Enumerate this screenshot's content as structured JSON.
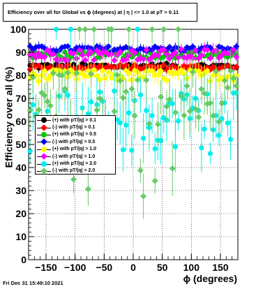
{
  "title": "Efficiency over all for Global vs ϕ (degrees) at |  η | <= 1.0 at pT > 0.11",
  "footer": "Fri Dec 31 15:49:10 2021",
  "chart_data": {
    "type": "scatter",
    "xlabel": "ϕ (degrees)",
    "ylabel": "Efficiency over all (%)",
    "xlim": [
      -180,
      180
    ],
    "ylim": [
      0,
      100
    ],
    "xticks": [
      -150,
      -100,
      -50,
      0,
      50,
      100,
      150
    ],
    "yticks": [
      0,
      10,
      20,
      30,
      40,
      50,
      60,
      70,
      80,
      90,
      100
    ],
    "grid": true,
    "legend_position": "left-middle",
    "series": [
      {
        "name": "(+) with pT/|q| > 0.1",
        "color": "#000000",
        "marker": "circle",
        "center": 84,
        "spread": 1.2,
        "err": 1.5
      },
      {
        "name": "(-) with pT/|q| > 0.1",
        "color": "#ff0000",
        "marker": "diamond",
        "center": 83.5,
        "spread": 1.2,
        "err": 1.5
      },
      {
        "name": "(+) with pT/|q| > 0.5",
        "color": "#00cc00",
        "marker": "circle",
        "center": 89,
        "spread": 1.5,
        "err": 2
      },
      {
        "name": "(-) with pT/|q| > 0.5",
        "color": "#0000ff",
        "marker": "diamond",
        "center": 91.5,
        "spread": 1.2,
        "err": 1.5
      },
      {
        "name": "(+) with pT/|q| > 1.0",
        "color": "#ffff00",
        "marker": "circle",
        "center": 80,
        "spread": 2.5,
        "err": 3
      },
      {
        "name": "(-) with pT/|q| > 1.0",
        "color": "#ff00ff",
        "marker": "diamond",
        "center": 89,
        "spread": 2.5,
        "err": 2.5
      },
      {
        "name": "(+) with pT/|q| > 2.0",
        "color": "#00eeee",
        "marker": "circle",
        "center": 60,
        "spread": 14,
        "err": 8
      },
      {
        "name": "(-) with pT/|q| > 2.0",
        "color": "#66cc66",
        "marker": "diamond",
        "center": 70,
        "spread": 12,
        "err": 8
      }
    ],
    "n_points": 72,
    "x_start": -177.5,
    "x_step": 5
  }
}
